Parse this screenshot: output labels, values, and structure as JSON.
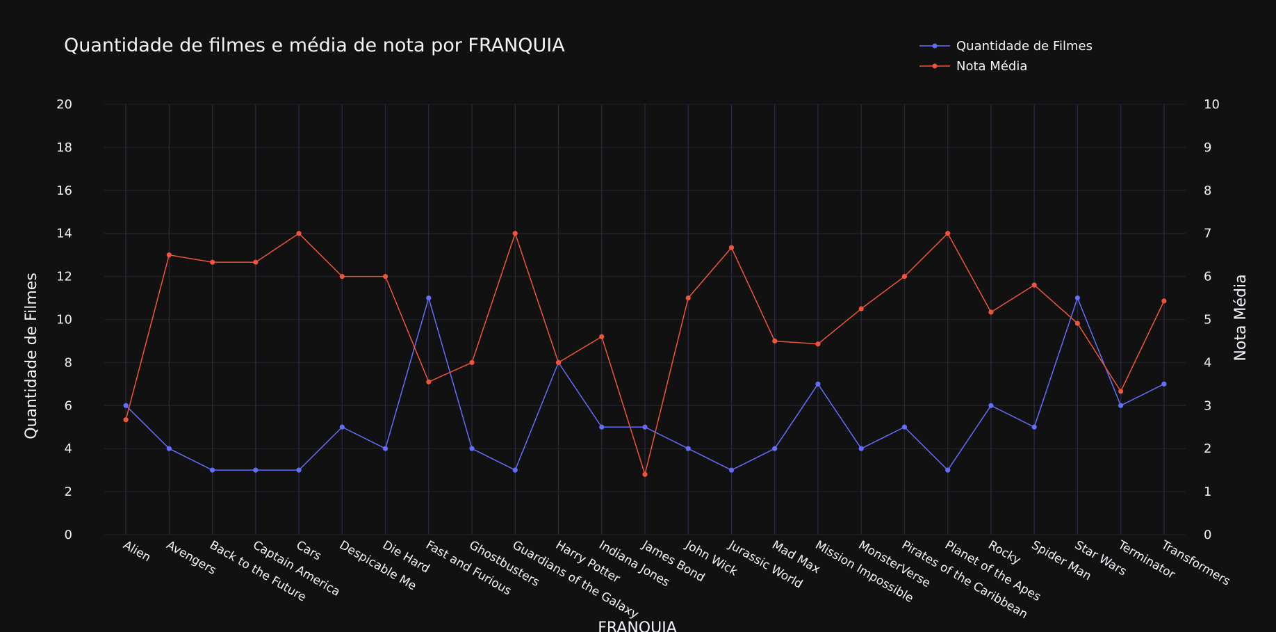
{
  "chart_data": {
    "type": "line",
    "title": "Quantidade de filmes e média de nota por FRANQUIA",
    "xlabel": "FRANQUIA",
    "ylabel": "Quantidade de Filmes",
    "y2label": "Nota Média",
    "ylim": [
      0,
      20
    ],
    "y2lim": [
      0,
      10
    ],
    "yticks": [
      0,
      2,
      4,
      6,
      8,
      10,
      12,
      14,
      16,
      18,
      20
    ],
    "y2ticks": [
      0,
      1,
      2,
      3,
      4,
      5,
      6,
      7,
      8,
      9,
      10
    ],
    "grid": true,
    "legend_position": "top-right",
    "categories": [
      "Alien",
      "Avengers",
      "Back to the Future",
      "Captain America",
      "Cars",
      "Despicable Me",
      "Die Hard",
      "Fast and Furious",
      "Ghostbusters",
      "Guardians of the Galaxy",
      "Harry Potter",
      "Indiana Jones",
      "James Bond",
      "John Wick",
      "Jurassic World",
      "Mad Max",
      "Mission Impossible",
      "MonsterVerse",
      "Pirates of the Caribbean",
      "Planet of the Apes",
      "Rocky",
      "Spider Man",
      "Star Wars",
      "Terminator",
      "Transformers"
    ],
    "series": [
      {
        "name": "Quantidade de Filmes",
        "axis": "y",
        "color": "#636efa",
        "values": [
          6,
          4,
          3,
          3,
          3,
          5,
          4,
          11,
          4,
          3,
          8,
          5,
          5,
          4,
          3,
          4,
          7,
          4,
          5,
          3,
          6,
          5,
          11,
          6,
          7
        ]
      },
      {
        "name": "Nota Média",
        "axis": "y2",
        "color": "#ef553b",
        "values": [
          2.67,
          6.5,
          6.33,
          6.33,
          7.0,
          6.0,
          6.0,
          3.55,
          4.0,
          7.0,
          4.0,
          4.6,
          1.4,
          5.5,
          6.67,
          4.5,
          4.43,
          5.25,
          6.0,
          7.0,
          5.17,
          5.8,
          4.91,
          3.33,
          5.43
        ]
      }
    ]
  }
}
